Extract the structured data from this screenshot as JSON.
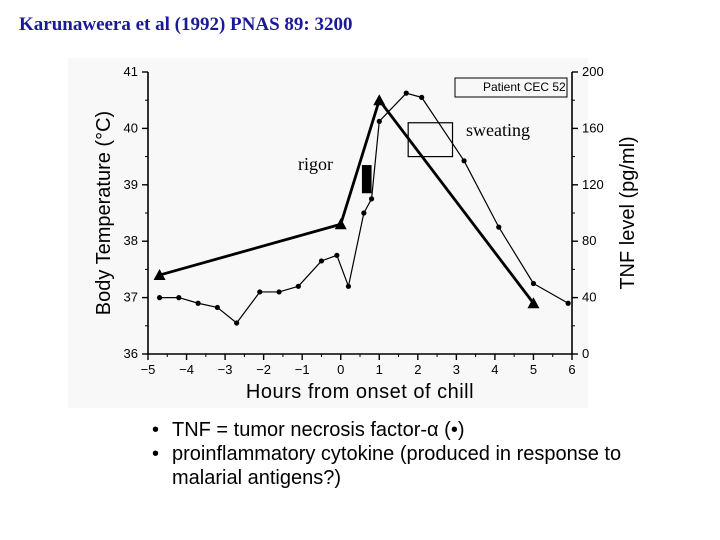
{
  "slide": {
    "title": "Karunaweera et al (1992) PNAS 89: 3200",
    "bullets": [
      "TNF = tumor necrosis factor-α (•)",
      "proinflammatory cytokine (produced in response to malarial antigens?)"
    ]
  },
  "chart_data": {
    "type": "line",
    "xlabel": "Hours from onset of chill",
    "ylabel": "Body Temperature (°C)",
    "y2label": "TNF level (pg/ml)",
    "xlim": [
      -5,
      6
    ],
    "ylim": [
      36,
      41
    ],
    "y2lim": [
      0,
      200
    ],
    "x_ticks": [
      "−5",
      "−4",
      "−3",
      "−2",
      "−1",
      "0",
      "1",
      "2",
      "3",
      "4",
      "5",
      "6"
    ],
    "y_ticks": [
      "36",
      "37",
      "38",
      "39",
      "40",
      "41"
    ],
    "y2_ticks": [
      "0",
      "40",
      "80",
      "120",
      "160",
      "200"
    ],
    "legend_box": "Patient CEC 52",
    "annotations": {
      "rigor": "rigor",
      "sweating": "sweating"
    },
    "series": [
      {
        "marker": "triangle",
        "axis": "left",
        "points": [
          [
            -4.7,
            37.4
          ],
          [
            0.0,
            38.3
          ],
          [
            1.0,
            40.5
          ],
          [
            5.0,
            36.9
          ]
        ]
      },
      {
        "marker": "dot",
        "axis": "right",
        "points": [
          [
            -4.7,
            40
          ],
          [
            -4.2,
            40
          ],
          [
            -3.7,
            36
          ],
          [
            -3.2,
            33
          ],
          [
            -2.7,
            22
          ],
          [
            -2.1,
            44
          ],
          [
            -1.6,
            44
          ],
          [
            -1.1,
            48
          ],
          [
            -0.5,
            66
          ],
          [
            -0.1,
            70
          ],
          [
            0.2,
            48
          ],
          [
            0.6,
            100
          ],
          [
            0.8,
            110
          ],
          [
            1.0,
            165
          ],
          [
            1.7,
            185
          ],
          [
            2.1,
            182
          ],
          [
            3.2,
            137
          ],
          [
            4.1,
            90
          ],
          [
            5.0,
            50
          ],
          [
            5.9,
            36
          ]
        ]
      }
    ],
    "rigor_marker": {
      "x_range": [
        0.55,
        0.8
      ],
      "y_range": [
        38.85,
        39.35
      ]
    },
    "sweating_marker": {
      "x_range": [
        1.75,
        2.9
      ],
      "y_range": [
        39.5,
        40.1
      ]
    }
  }
}
